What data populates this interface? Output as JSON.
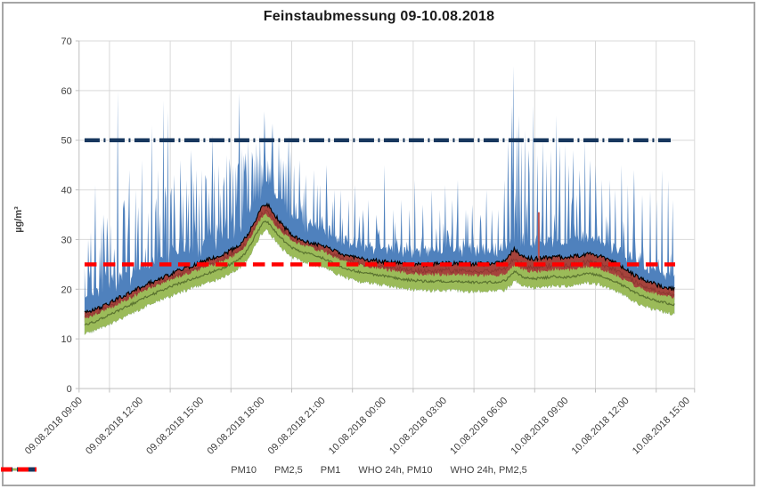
{
  "title": "Feinstaubmessung 09-10.08.2018",
  "y_axis": {
    "label": "µg/m³",
    "tick_labels": [
      "0",
      "10",
      "20",
      "30",
      "40",
      "50",
      "60",
      "70"
    ]
  },
  "x_axis": {
    "tick_labels": [
      "09.08.2018 09:00",
      "09.08.2018 12:00",
      "09.08.2018 15:00",
      "09.08.2018 18:00",
      "09.08.2018 21:00",
      "10.08.2018 00:00",
      "10.08.2018 03:00",
      "10.08.2018 06:00",
      "10.08.2018 09:00",
      "10.08.2018 12:00",
      "10.08.2018 15:00"
    ]
  },
  "legend": [
    {
      "label": "PM10",
      "color": "#4F81BD",
      "style": "solid"
    },
    {
      "label": "PM2,5",
      "color": "#A5433C",
      "style": "solid"
    },
    {
      "label": "PM1",
      "color": "#9BBB59",
      "style": "solid"
    },
    {
      "label": "WHO 24h, PM10",
      "color": "#17375E",
      "style": "dashdot"
    },
    {
      "label": "WHO 24h, PM2,5",
      "color": "#FF0000",
      "style": "dash"
    }
  ],
  "chart_data": {
    "type": "line",
    "title": "Feinstaubmessung 09-10.08.2018",
    "ylabel": "µg/m³",
    "ylim": [
      0,
      70
    ],
    "y_step": 10,
    "grid": true,
    "legend_position": "bottom",
    "x_unit": "hours since 09.08.2018 00:00",
    "x_tick_hours": [
      9,
      12,
      15,
      18,
      21,
      24,
      27,
      30,
      33,
      36,
      39
    ],
    "x_data_range": [
      9.27,
      38.4
    ],
    "who_limits": {
      "pm10_24h": 50,
      "pm2_5_24h": 25
    },
    "series_colors": {
      "pm10": "#4F81BD",
      "pm2_5": "#A5433C",
      "pm2_5_top_line": "#000000",
      "pm1": "#9BBB59",
      "pm1_center_line": "#5b7430",
      "who_pm10": "#17375E",
      "who_pm2_5": "#FF0000"
    },
    "baseline": {
      "t": [
        9.25,
        9.75,
        10.25,
        10.75,
        11.25,
        11.75,
        12.25,
        12.75,
        13.25,
        13.75,
        14.25,
        14.75,
        15.25,
        15.75,
        16.25,
        16.75,
        17,
        17.25,
        17.5,
        17.75,
        18,
        18.2,
        18.4,
        18.6,
        18.8,
        19,
        19.25,
        19.5,
        20,
        20.5,
        21,
        21.5,
        22,
        22.5,
        23,
        23.5,
        24,
        24.5,
        25,
        25.5,
        26,
        26.5,
        27,
        27.5,
        28,
        28.5,
        29,
        29.5,
        30,
        30.3,
        30.5,
        30.8,
        31,
        31.5,
        32,
        32.5,
        33,
        33.5,
        34,
        34.5,
        35,
        35.5,
        36,
        36.5,
        37,
        37.5,
        38,
        38.4
      ],
      "pm2_5": [
        15.2,
        15.8,
        16.8,
        17.8,
        18.8,
        19.8,
        20.8,
        21.7,
        22.6,
        23.5,
        24.3,
        25.0,
        25.8,
        26.4,
        27.2,
        28.4,
        29.3,
        30.5,
        32.2,
        34.3,
        36.2,
        37.2,
        36.6,
        35.4,
        34.2,
        33.2,
        32.0,
        31.0,
        29.9,
        29.3,
        28.8,
        27.9,
        27.1,
        26.5,
        26.1,
        25.8,
        25.6,
        25.3,
        25.1,
        25.0,
        24.9,
        25.0,
        25.1,
        25.2,
        25.2,
        25.1,
        25.1,
        25.2,
        25.6,
        27.0,
        28.2,
        27.0,
        26.4,
        26.1,
        26.3,
        26.6,
        26.4,
        26.6,
        27.1,
        26.9,
        26.2,
        25.2,
        24.0,
        22.7,
        21.7,
        20.9,
        20.3,
        20.0
      ],
      "pm1": [
        12.9,
        13.4,
        14.4,
        15.3,
        16.3,
        17.3,
        18.3,
        19.2,
        20.1,
        20.9,
        21.6,
        22.3,
        23.1,
        23.7,
        24.5,
        25.6,
        26.4,
        27.5,
        29.2,
        31.2,
        32.9,
        33.7,
        33.2,
        32.1,
        31.0,
        30.2,
        29.2,
        28.4,
        27.5,
        26.9,
        26.3,
        25.3,
        24.4,
        23.8,
        23.3,
        23.0,
        22.7,
        22.3,
        22.0,
        21.8,
        21.6,
        21.6,
        21.6,
        21.6,
        21.5,
        21.4,
        21.4,
        21.4,
        21.7,
        22.6,
        23.6,
        22.8,
        22.3,
        22.1,
        22.3,
        22.6,
        22.4,
        22.6,
        23.2,
        23.0,
        22.4,
        21.5,
        20.4,
        19.2,
        18.3,
        17.7,
        17.2,
        16.9
      ]
    },
    "pm10_peaks": [
      [
        9.45,
        30
      ],
      [
        9.8,
        41
      ],
      [
        10.2,
        35
      ],
      [
        10.55,
        33
      ],
      [
        10.9,
        60
      ],
      [
        11.2,
        38
      ],
      [
        11.5,
        44
      ],
      [
        11.8,
        40
      ],
      [
        12.1,
        46
      ],
      [
        12.6,
        53
      ],
      [
        12.9,
        44
      ],
      [
        13.15,
        58
      ],
      [
        13.4,
        56
      ],
      [
        13.7,
        43
      ],
      [
        14.0,
        46
      ],
      [
        14.3,
        42
      ],
      [
        14.55,
        48
      ],
      [
        14.8,
        44
      ],
      [
        15.05,
        44
      ],
      [
        15.3,
        42
      ],
      [
        15.6,
        51
      ],
      [
        15.9,
        45
      ],
      [
        16.3,
        47
      ],
      [
        16.6,
        45
      ],
      [
        16.9,
        59.5
      ],
      [
        17.15,
        47
      ],
      [
        17.35,
        50
      ],
      [
        17.6,
        46
      ],
      [
        17.85,
        47
      ],
      [
        18.1,
        45
      ],
      [
        18.35,
        46
      ],
      [
        18.6,
        44
      ],
      [
        18.85,
        50
      ],
      [
        19.1,
        46
      ],
      [
        19.35,
        51
      ],
      [
        19.6,
        45
      ],
      [
        19.9,
        46
      ],
      [
        20.2,
        43
      ],
      [
        20.6,
        44
      ],
      [
        20.9,
        41
      ],
      [
        21.2,
        45
      ],
      [
        21.6,
        40
      ],
      [
        21.9,
        40
      ],
      [
        22.3,
        38
      ],
      [
        22.6,
        41
      ],
      [
        23.0,
        36
      ],
      [
        23.3,
        38
      ],
      [
        23.7,
        35
      ],
      [
        24.1,
        45
      ],
      [
        24.5,
        36
      ],
      [
        24.9,
        38
      ],
      [
        25.3,
        36
      ],
      [
        25.6,
        42
      ],
      [
        26.0,
        37
      ],
      [
        26.4,
        40
      ],
      [
        26.8,
        36
      ],
      [
        27.1,
        41
      ],
      [
        27.45,
        38
      ],
      [
        27.7,
        42
      ],
      [
        28.1,
        36
      ],
      [
        28.4,
        37
      ],
      [
        28.8,
        35
      ],
      [
        29.1,
        40
      ],
      [
        29.4,
        36
      ],
      [
        29.7,
        36
      ],
      [
        30.0,
        42
      ],
      [
        30.2,
        50
      ],
      [
        30.35,
        57
      ],
      [
        30.45,
        65
      ],
      [
        30.6,
        53
      ],
      [
        30.7,
        55
      ],
      [
        30.85,
        50
      ],
      [
        31.0,
        52
      ],
      [
        31.2,
        48
      ],
      [
        31.4,
        57
      ],
      [
        31.65,
        47
      ],
      [
        31.9,
        50
      ],
      [
        32.1,
        46
      ],
      [
        32.3,
        48
      ],
      [
        32.55,
        55
      ],
      [
        32.75,
        49
      ],
      [
        33.0,
        49
      ],
      [
        33.2,
        45
      ],
      [
        33.4,
        48
      ],
      [
        33.7,
        44
      ],
      [
        34.0,
        50
      ],
      [
        34.25,
        46
      ],
      [
        34.5,
        45
      ],
      [
        34.8,
        42
      ],
      [
        35.2,
        42
      ],
      [
        35.5,
        40
      ],
      [
        35.8,
        45
      ],
      [
        36.1,
        41
      ],
      [
        36.4,
        44
      ],
      [
        36.8,
        39
      ],
      [
        37.2,
        40
      ],
      [
        37.5,
        38
      ],
      [
        37.8,
        44
      ],
      [
        38.1,
        42
      ],
      [
        38.3,
        38
      ]
    ],
    "pm2_5_peaks": [
      [
        31.7,
        35.5
      ]
    ],
    "render_hints": {
      "seed": 20180809,
      "steps": 660,
      "spikiness": [
        [
          9.25,
          0.9
        ],
        [
          12,
          1.0
        ],
        [
          18,
          0.95
        ],
        [
          21,
          0.75
        ],
        [
          23,
          0.5
        ],
        [
          25,
          0.45
        ],
        [
          28,
          0.45
        ],
        [
          30,
          0.6
        ],
        [
          30.5,
          1.0
        ],
        [
          31.5,
          0.85
        ],
        [
          33,
          0.7
        ],
        [
          35,
          0.55
        ],
        [
          36.5,
          0.5
        ],
        [
          38.4,
          0.45
        ]
      ]
    }
  }
}
